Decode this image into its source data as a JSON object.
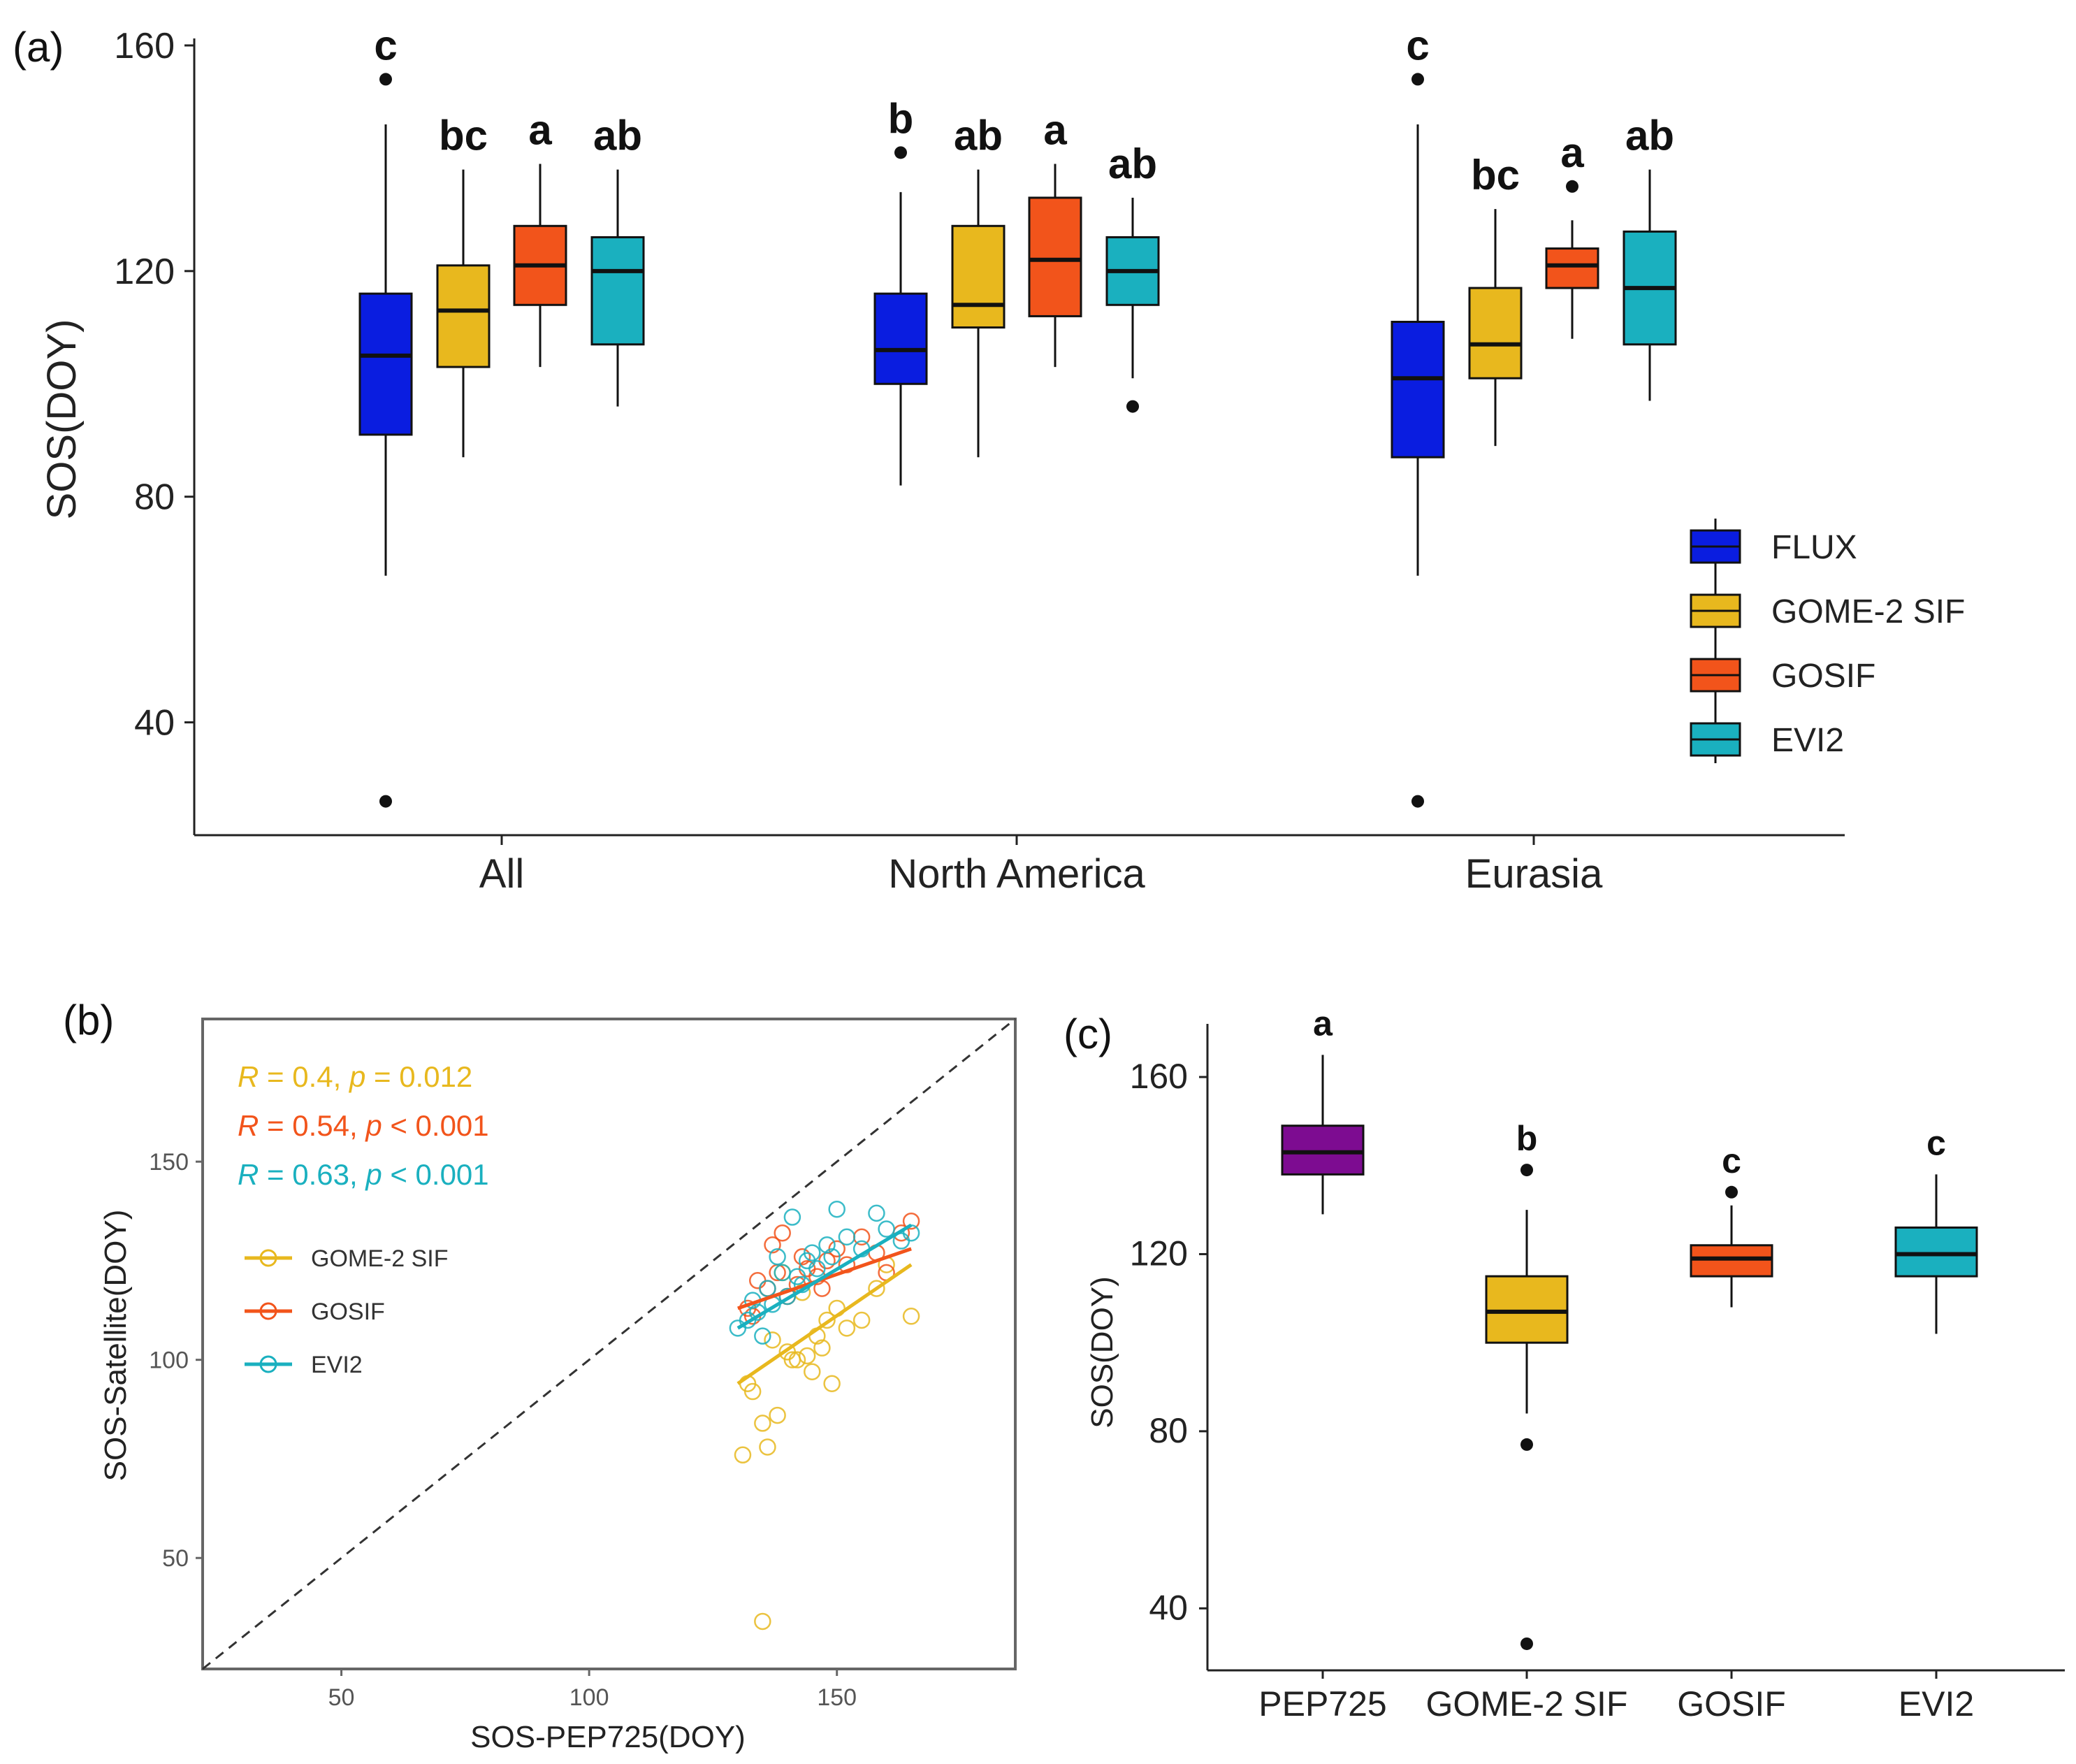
{
  "colors": {
    "FLUX": "#0a1de0",
    "GOME-2 SIF": "#e8b81e",
    "GOSIF": "#f2541b",
    "EVI2": "#1ab0bf",
    "PEP725": "#7d0c91",
    "axis": "#222222"
  },
  "chart_data": [
    {
      "panel": "(a)",
      "type": "box",
      "ylabel": "SOS(DOY)",
      "xlabel": "",
      "ylim": [
        20,
        160
      ],
      "yticks": [
        40,
        80,
        120,
        160
      ],
      "categories": [
        "All",
        "North America",
        "Eurasia"
      ],
      "series_names": [
        "FLUX",
        "GOME-2 SIF",
        "GOSIF",
        "EVI2"
      ],
      "legend": [
        "FLUX",
        "GOME-2 SIF",
        "GOSIF",
        "EVI2"
      ],
      "boxes": [
        {
          "group": "All",
          "series": "FLUX",
          "min": 66,
          "q1": 91,
          "median": 105,
          "q3": 116,
          "max": 146,
          "outliers": [
            154,
            26
          ],
          "letter": "c"
        },
        {
          "group": "All",
          "series": "GOME-2 SIF",
          "min": 87,
          "q1": 103,
          "median": 113,
          "q3": 121,
          "max": 138,
          "outliers": [],
          "letter": "bc"
        },
        {
          "group": "All",
          "series": "GOSIF",
          "min": 103,
          "q1": 114,
          "median": 121,
          "q3": 128,
          "max": 139,
          "outliers": [],
          "letter": "a"
        },
        {
          "group": "All",
          "series": "EVI2",
          "min": 96,
          "q1": 107,
          "median": 120,
          "q3": 126,
          "max": 138,
          "outliers": [],
          "letter": "ab"
        },
        {
          "group": "North America",
          "series": "FLUX",
          "min": 82,
          "q1": 100,
          "median": 106,
          "q3": 116,
          "max": 134,
          "outliers": [
            141
          ],
          "letter": "b"
        },
        {
          "group": "North America",
          "series": "GOME-2 SIF",
          "min": 87,
          "q1": 110,
          "median": 114,
          "q3": 128,
          "max": 138,
          "outliers": [],
          "letter": "ab"
        },
        {
          "group": "North America",
          "series": "GOSIF",
          "min": 103,
          "q1": 112,
          "median": 122,
          "q3": 133,
          "max": 139,
          "outliers": [],
          "letter": "a"
        },
        {
          "group": "North America",
          "series": "EVI2",
          "min": 101,
          "q1": 114,
          "median": 120,
          "q3": 126,
          "max": 133,
          "outliers": [
            96
          ],
          "letter": "ab"
        },
        {
          "group": "Eurasia",
          "series": "FLUX",
          "min": 66,
          "q1": 87,
          "median": 101,
          "q3": 111,
          "max": 146,
          "outliers": [
            154,
            26
          ],
          "letter": "c"
        },
        {
          "group": "Eurasia",
          "series": "GOME-2 SIF",
          "min": 89,
          "q1": 101,
          "median": 107,
          "q3": 117,
          "max": 131,
          "outliers": [],
          "letter": "bc"
        },
        {
          "group": "Eurasia",
          "series": "GOSIF",
          "min": 108,
          "q1": 117,
          "median": 121,
          "q3": 124,
          "max": 129,
          "outliers": [
            135
          ],
          "letter": "a"
        },
        {
          "group": "Eurasia",
          "series": "EVI2",
          "min": 97,
          "q1": 107,
          "median": 117,
          "q3": 127,
          "max": 138,
          "outliers": [],
          "letter": "ab"
        }
      ]
    },
    {
      "panel": "(b)",
      "type": "scatter",
      "xlabel": "SOS-PEP725(DOY)",
      "ylabel": "SOS-Satellite(DOY)",
      "xlim": [
        22,
        186
      ],
      "ylim": [
        22,
        186
      ],
      "xticks": [
        50,
        100,
        150
      ],
      "yticks": [
        50,
        100,
        150
      ],
      "identity_line": true,
      "stats": [
        {
          "series": "GOME-2 SIF",
          "R": "0.4",
          "p_op": "=",
          "p": "0.012"
        },
        {
          "series": "GOSIF",
          "R": "0.54",
          "p_op": "<",
          "p": "0.001"
        },
        {
          "series": "EVI2",
          "R": "0.63",
          "p_op": "<",
          "p": "0.001"
        }
      ],
      "legend": [
        "GOME-2 SIF",
        "GOSIF",
        "EVI2"
      ],
      "series": [
        {
          "name": "GOME-2 SIF",
          "fit": {
            "x": [
              130,
              165
            ],
            "y": [
              94,
              124
            ]
          },
          "x": [
            133,
            135,
            138,
            140,
            142,
            144,
            146,
            148,
            150,
            152,
            136,
            141,
            145,
            149,
            155,
            158,
            160,
            165,
            139,
            143,
            131,
            137,
            147,
            135,
            132
          ],
          "y": [
            92,
            84,
            86,
            102,
            100,
            101,
            106,
            110,
            113,
            108,
            78,
            100,
            97,
            94,
            110,
            118,
            124,
            111,
            122,
            117,
            76,
            105,
            103,
            34,
            94
          ]
        },
        {
          "name": "GOSIF",
          "fit": {
            "x": [
              130,
              165
            ],
            "y": [
              113,
              128
            ]
          },
          "x": [
            132,
            134,
            136,
            138,
            140,
            142,
            144,
            146,
            148,
            150,
            152,
            155,
            158,
            160,
            163,
            165,
            137,
            143,
            147,
            133,
            139
          ],
          "y": [
            113,
            120,
            118,
            122,
            116,
            119,
            123,
            121,
            125,
            128,
            124,
            131,
            127,
            122,
            132,
            135,
            129,
            126,
            118,
            111,
            132
          ]
        },
        {
          "name": "EVI2",
          "fit": {
            "x": [
              130,
              165
            ],
            "y": [
              108,
              134
            ]
          },
          "x": [
            130,
            132,
            134,
            136,
            138,
            140,
            142,
            144,
            146,
            148,
            150,
            152,
            155,
            158,
            160,
            163,
            165,
            137,
            141,
            145,
            135,
            139,
            143,
            149,
            133
          ],
          "y": [
            108,
            110,
            112,
            118,
            126,
            116,
            121,
            125,
            123,
            129,
            138,
            131,
            128,
            137,
            133,
            130,
            132,
            114,
            136,
            127,
            106,
            122,
            119,
            126,
            115
          ]
        }
      ]
    },
    {
      "panel": "(c)",
      "type": "box",
      "ylabel": "SOS(DOY)",
      "xlabel": "",
      "ylim": [
        26,
        172
      ],
      "yticks": [
        40,
        80,
        120,
        160
      ],
      "categories": [
        "PEP725",
        "GOME-2 SIF",
        "GOSIF",
        "EVI2"
      ],
      "boxes": [
        {
          "series": "PEP725",
          "min": 129,
          "q1": 138,
          "median": 143,
          "q3": 149,
          "max": 165,
          "outliers": [],
          "letter": "a"
        },
        {
          "series": "GOME-2 SIF",
          "min": 84,
          "q1": 100,
          "median": 107,
          "q3": 115,
          "max": 130,
          "outliers": [
            139,
            77,
            32
          ],
          "letter": "b"
        },
        {
          "series": "GOSIF",
          "min": 108,
          "q1": 115,
          "median": 119,
          "q3": 122,
          "max": 131,
          "outliers": [
            134
          ],
          "letter": "c"
        },
        {
          "series": "EVI2",
          "min": 102,
          "q1": 115,
          "median": 120,
          "q3": 126,
          "max": 138,
          "outliers": [],
          "letter": "c"
        }
      ]
    }
  ]
}
